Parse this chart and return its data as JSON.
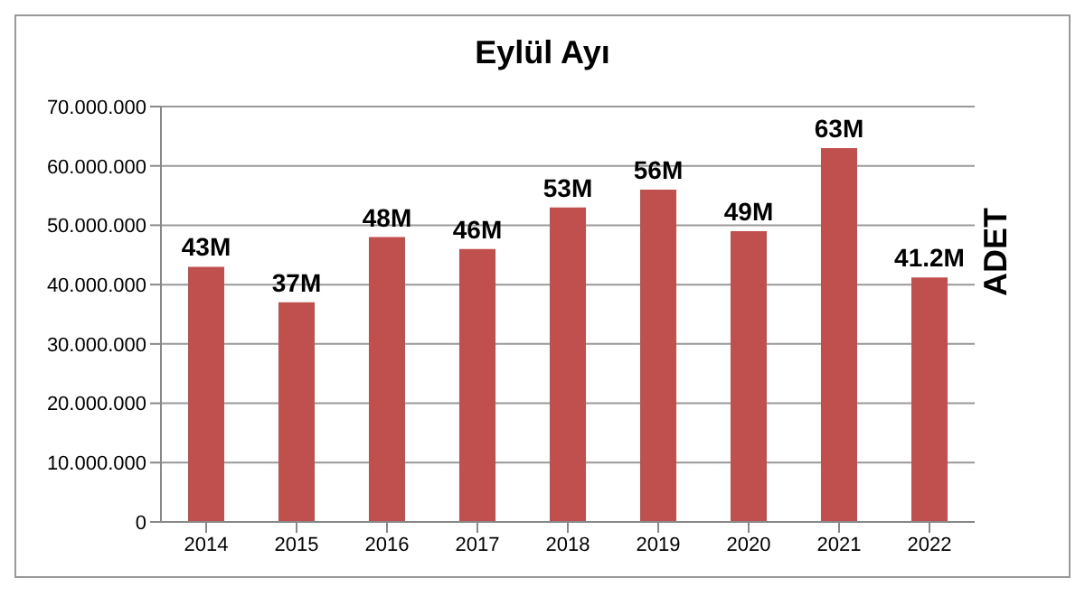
{
  "chart_data": {
    "type": "bar",
    "title": "Eylül Ayı",
    "ylabel": "ADET",
    "categories": [
      "2014",
      "2015",
      "2016",
      "2017",
      "2018",
      "2019",
      "2020",
      "2021",
      "2022"
    ],
    "values": [
      43000000,
      37000000,
      48000000,
      46000000,
      53000000,
      56000000,
      49000000,
      63000000,
      41200000
    ],
    "value_labels": [
      "43M",
      "37M",
      "48M",
      "46M",
      "53M",
      "56M",
      "49M",
      "63M",
      "41.2M"
    ],
    "color": "#c0504d",
    "ylim": [
      0,
      70000000
    ],
    "yticks": [
      {
        "value": 0,
        "label": "0"
      },
      {
        "value": 10000000,
        "label": "10.000.000"
      },
      {
        "value": 20000000,
        "label": "20.000.000"
      },
      {
        "value": 30000000,
        "label": "30.000.000"
      },
      {
        "value": 40000000,
        "label": "40.000.000"
      },
      {
        "value": 50000000,
        "label": "50.000.000"
      },
      {
        "value": 60000000,
        "label": "60.000.000"
      },
      {
        "value": 70000000,
        "label": "70.000.000"
      }
    ],
    "grid": "y"
  }
}
